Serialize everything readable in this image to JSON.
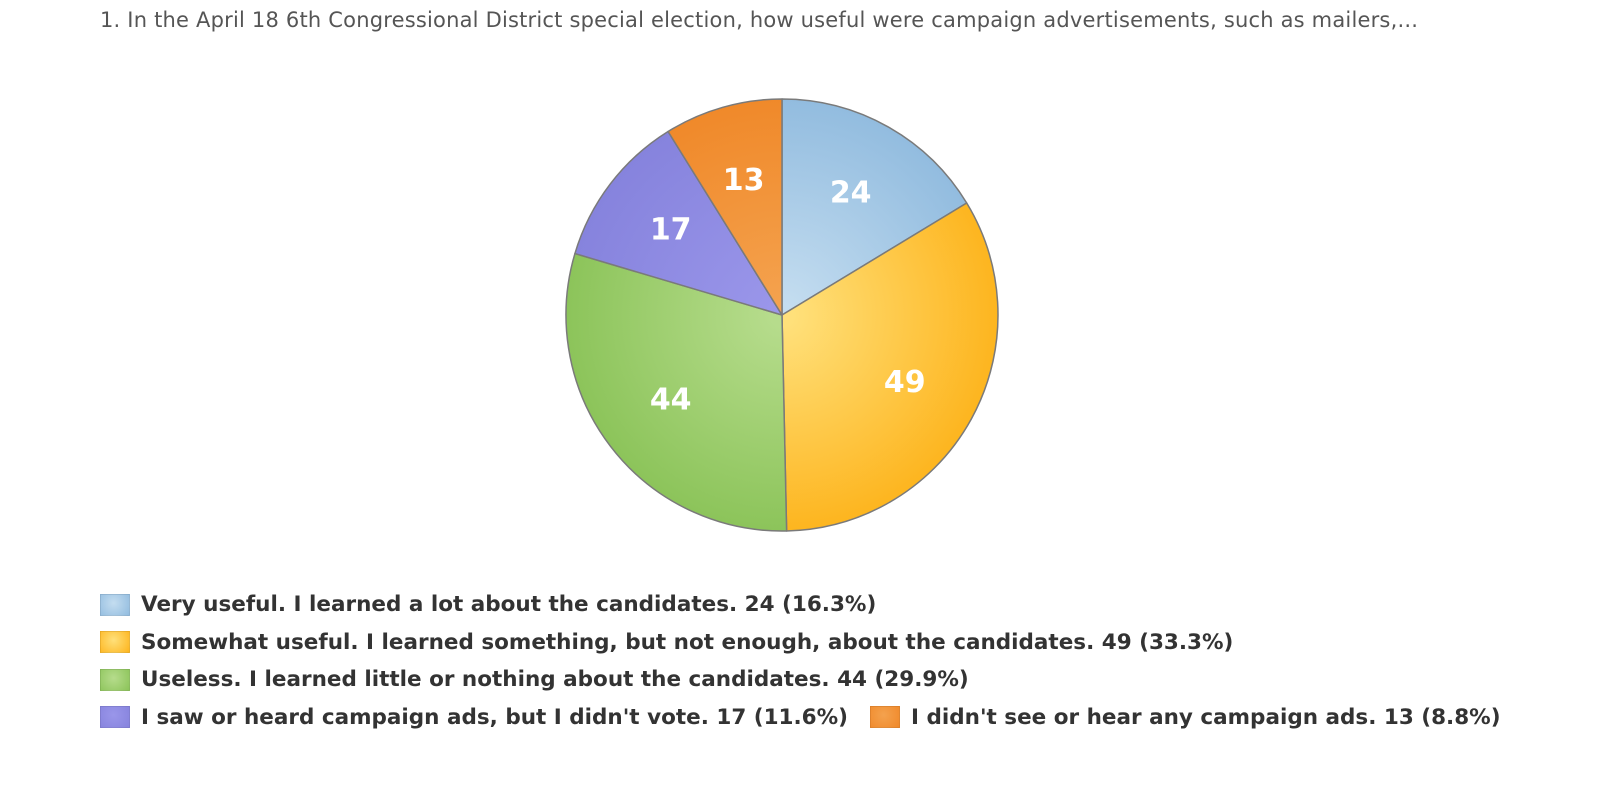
{
  "title": "1. In the April 18 6th Congressional District special election, how useful were campaign advertisements, such as mailers,...",
  "chart_data": {
    "type": "pie",
    "title": "1. In the April 18 6th Congressional District special election, how useful were campaign advertisements, such as mailers,...",
    "slices": [
      {
        "label": "Very useful. I learned a lot about the candidates.",
        "value": 24,
        "percent": "16.3%",
        "color": "#92bcdf",
        "color_light": "#c4ddf0",
        "legend_text": "Very useful. I learned a lot about the candidates. 24 (16.3%)"
      },
      {
        "label": "Somewhat useful. I learned something, but not enough, about the candidates.",
        "value": 49,
        "percent": "33.3%",
        "color": "#fdb51f",
        "color_light": "#ffe07a",
        "legend_text": "Somewhat useful. I learned something, but not enough, about the candidates. 49 (33.3%)"
      },
      {
        "label": "Useless. I learned little or nothing about the candidates.",
        "value": 44,
        "percent": "29.9%",
        "color": "#8cc45a",
        "color_light": "#b6dc8c",
        "legend_text": "Useless. I learned little or nothing about the candidates. 44 (29.9%)"
      },
      {
        "label": "I saw or heard campaign ads, but I didn't vote.",
        "value": 17,
        "percent": "11.6%",
        "color": "#8683dd",
        "color_light": "#9a96ea",
        "legend_text": "I saw or heard campaign ads, but I didn't vote. 17 (11.6%)"
      },
      {
        "label": "I didn't see or hear any campaign ads.",
        "value": 13,
        "percent": "8.8%",
        "color": "#f0892a",
        "color_light": "#f4a24e",
        "legend_text": "I didn't see or hear any campaign ads. 13 (8.8%)"
      }
    ],
    "start_angle_deg": 0,
    "direction": "clockwise",
    "data_labels": "values inside slices",
    "legend_position": "bottom-left"
  }
}
